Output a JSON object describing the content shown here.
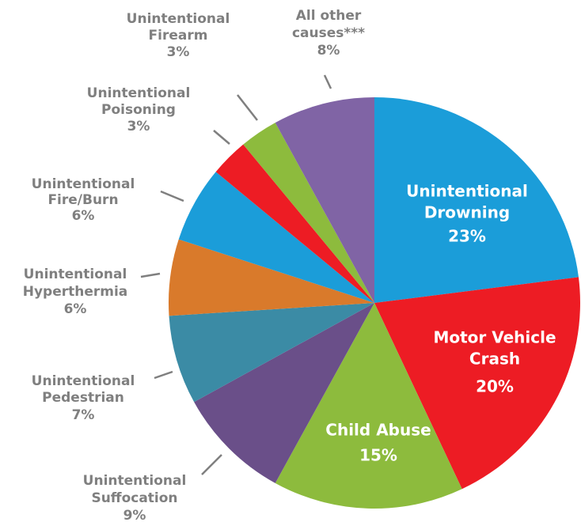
{
  "chart_data": {
    "type": "pie",
    "categories": [
      [
        "Unintentional",
        "Drowning"
      ],
      [
        "Motor Vehicle",
        "Crash"
      ],
      [
        "Child Abuse"
      ],
      [
        "Unintentional",
        "Suffocation"
      ],
      [
        "Unintentional",
        "Pedestrian"
      ],
      [
        "Unintentional",
        "Hyperthermia"
      ],
      [
        "Unintentional",
        "Fire/Burn"
      ],
      [
        "Unintentional",
        "Poisoning"
      ],
      [
        "Unintentional",
        "Firearm"
      ],
      [
        "All other",
        "causes***"
      ]
    ],
    "values": [
      23,
      20,
      15,
      9,
      7,
      6,
      6,
      3,
      3,
      8
    ],
    "value_labels": [
      "23%",
      "20%",
      "15%",
      "9%",
      "7%",
      "6%",
      "6%",
      "3%",
      "3%",
      "8%"
    ],
    "colors": [
      "#1b9dd9",
      "#ed1c24",
      "#8dbb3d",
      "#6a4f89",
      "#3b8ba5",
      "#d97a2b",
      "#1b9dd9",
      "#ed1c24",
      "#8dbb3d",
      "#8064a5"
    ]
  }
}
